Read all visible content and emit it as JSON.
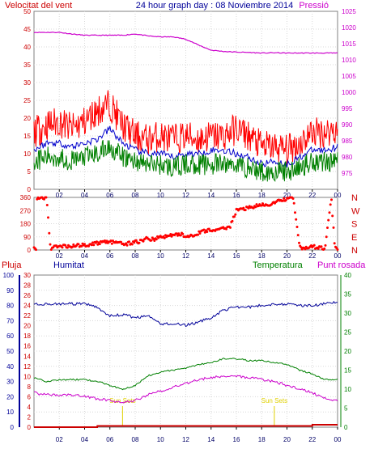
{
  "chart_data": [
    {
      "type": "line",
      "panel": "wind-pressure",
      "title": "24 hour graph day : 08 Noviembre 2014",
      "left_axis_label": "Velocitat del vent",
      "right_axis_label": "Pressió",
      "left_axis": {
        "range": [
          0,
          50
        ],
        "ticks": [
          "0",
          "5",
          "10",
          "15",
          "20",
          "25",
          "30",
          "35",
          "40",
          "45",
          "50"
        ]
      },
      "right_axis": {
        "range": [
          970,
          1025
        ],
        "ticks": [
          "975",
          "980",
          "985",
          "990",
          "995",
          "1000",
          "1005",
          "1010",
          "1015",
          "1020",
          "1025"
        ]
      },
      "x_ticks": [
        "02",
        "04",
        "06",
        "08",
        "10",
        "12",
        "14",
        "16",
        "18",
        "20",
        "22",
        "00"
      ],
      "grid": true,
      "colors": {
        "gust": "#ff0000",
        "average": "#0000cc",
        "speed": "#008000",
        "pressure": "#cc00cc",
        "labels_left": "#cc0000",
        "labels_right": "#cc00cc"
      },
      "series": [
        {
          "name": "",
          "role": "pressure",
          "axis": "right",
          "x": [
            0,
            1,
            2,
            3,
            4,
            5,
            6,
            7,
            8,
            9,
            10,
            11,
            12,
            13,
            14,
            15,
            16,
            17,
            18,
            19,
            20,
            21,
            22,
            23,
            24
          ],
          "values": [
            1018.5,
            1018.5,
            1018.5,
            1018.0,
            1017.6,
            1017.6,
            1017.6,
            1017.6,
            1018.0,
            1017.4,
            1017.1,
            1017.1,
            1016.4,
            1014.6,
            1013.0,
            1012.6,
            1012.4,
            1012.3,
            1012.1,
            1012.2,
            1012.1,
            1012.1,
            1012.1,
            1012.1,
            1012.1
          ]
        },
        {
          "name": "",
          "role": "gust",
          "axis": "left",
          "x": [
            0,
            1,
            2,
            3,
            4,
            5,
            6,
            7,
            8,
            9,
            10,
            11,
            12,
            13,
            14,
            15,
            16,
            17,
            18,
            19,
            20,
            21,
            22,
            23,
            24
          ],
          "values": [
            16,
            18,
            19,
            17,
            19,
            22,
            24,
            18,
            15,
            14,
            15,
            14,
            15,
            14,
            15,
            15,
            17,
            15,
            12,
            12,
            11,
            13,
            16,
            16,
            17
          ]
        },
        {
          "name": "",
          "role": "average",
          "axis": "left",
          "x": [
            0,
            1,
            2,
            3,
            4,
            5,
            6,
            7,
            8,
            9,
            10,
            11,
            12,
            13,
            14,
            15,
            16,
            17,
            18,
            19,
            20,
            21,
            22,
            23,
            24
          ],
          "values": [
            11,
            13,
            13,
            12,
            13,
            14,
            17,
            13,
            11,
            10,
            10,
            9,
            10,
            10,
            11,
            11,
            10,
            9,
            7,
            8,
            7,
            9,
            11,
            11,
            12
          ]
        },
        {
          "name": "",
          "role": "speed",
          "axis": "left",
          "x": [
            0,
            1,
            2,
            3,
            4,
            5,
            6,
            7,
            8,
            9,
            10,
            11,
            12,
            13,
            14,
            15,
            16,
            17,
            18,
            19,
            20,
            21,
            22,
            23,
            24
          ],
          "values": [
            8,
            9,
            9,
            8,
            9,
            10,
            12,
            9,
            8,
            7,
            7,
            6,
            7,
            7,
            7,
            7,
            7,
            6,
            5,
            5,
            5,
            6,
            8,
            8,
            8
          ]
        }
      ]
    },
    {
      "type": "scatter",
      "panel": "wind-direction",
      "left_axis": {
        "range": [
          0,
          360
        ],
        "ticks": [
          "0",
          "90",
          "180",
          "270",
          "360"
        ]
      },
      "right_labels": [
        "N",
        "W",
        "S",
        "E",
        "N"
      ],
      "x_ticks": [
        "02",
        "04",
        "06",
        "08",
        "10",
        "12",
        "14",
        "16",
        "18",
        "20",
        "22",
        "00"
      ],
      "color": "#ff0000",
      "series": [
        {
          "name": "",
          "role": "direction",
          "x": [
            0.2,
            0.5,
            0.8,
            1,
            1.3,
            1.6,
            2,
            2.5,
            3,
            3.5,
            4,
            4.5,
            5,
            5.5,
            6,
            6.5,
            7,
            7.5,
            8,
            8.5,
            9,
            9.5,
            10,
            10.5,
            11,
            11.5,
            12,
            12.5,
            13,
            13.5,
            14,
            14.5,
            15,
            15.5,
            16,
            16.5,
            17,
            17.5,
            18,
            18.5,
            19,
            19.5,
            20,
            20.5,
            21,
            21.5,
            22,
            22.5,
            23,
            23.5,
            23.8
          ],
          "values": [
            360,
            350,
            355,
            360,
            10,
            20,
            25,
            28,
            25,
            30,
            35,
            40,
            45,
            60,
            55,
            50,
            40,
            45,
            55,
            60,
            80,
            70,
            90,
            95,
            100,
            110,
            95,
            100,
            115,
            130,
            140,
            130,
            150,
            160,
            270,
            280,
            290,
            300,
            305,
            310,
            320,
            340,
            350,
            355,
            20,
            10,
            25,
            15,
            15,
            360,
            10
          ]
        }
      ]
    },
    {
      "type": "line",
      "panel": "temperature-humidity",
      "left_axis_labels": {
        "rain": "Pluja",
        "humidity": "Humitat"
      },
      "right_axis_labels": {
        "temperature": "Temperatura",
        "dew_point": "Punt rosada"
      },
      "rain_axis": {
        "range": [
          0,
          100
        ],
        "ticks": [
          "0",
          "10",
          "20",
          "30",
          "40",
          "50",
          "60",
          "70",
          "80",
          "90",
          "100"
        ]
      },
      "humidity_axis": {
        "range": [
          0,
          30
        ],
        "ticks": [
          "0",
          "2",
          "4",
          "6",
          "8",
          "10",
          "12",
          "14",
          "16",
          "18",
          "20",
          "22",
          "24",
          "26",
          "28",
          "30"
        ]
      },
      "temperature_axis": {
        "range": [
          0,
          40
        ],
        "ticks": [
          "0",
          "5",
          "10",
          "15",
          "20",
          "25",
          "30",
          "35",
          "40"
        ]
      },
      "x_ticks": [
        "02",
        "04",
        "06",
        "08",
        "10",
        "12",
        "14",
        "16",
        "18",
        "20",
        "22",
        "00"
      ],
      "annotations": [
        {
          "text": "Sun Sets",
          "x": 7.0
        },
        {
          "text": "Sun Sets",
          "x": 19.0
        }
      ],
      "colors": {
        "humidity": "#000099",
        "temperature": "#008000",
        "dew_point": "#cc00cc",
        "rain": "#cc0000",
        "annotation": "#e0d000"
      },
      "series": [
        {
          "name": "",
          "role": "humidity",
          "axis": "rain",
          "x": [
            0,
            1,
            2,
            3,
            4,
            5,
            6,
            7,
            8,
            9,
            10,
            11,
            12,
            13,
            14,
            15,
            16,
            17,
            18,
            19,
            20,
            21,
            22,
            23,
            24
          ],
          "values": [
            81,
            81,
            81,
            81,
            81,
            79,
            73,
            74,
            72,
            73,
            68,
            68,
            67,
            69,
            72,
            77,
            79,
            79,
            80,
            81,
            81,
            80,
            80,
            81,
            82
          ]
        },
        {
          "name": "",
          "role": "temperature",
          "axis": "temperature",
          "x": [
            0,
            1,
            2,
            3,
            4,
            5,
            6,
            7,
            8,
            9,
            10,
            11,
            12,
            13,
            14,
            15,
            16,
            17,
            18,
            19,
            20,
            21,
            22,
            23,
            24
          ],
          "values": [
            13.0,
            12.0,
            12.5,
            12.5,
            12.5,
            12.0,
            11.0,
            10.0,
            11.0,
            13.5,
            14.5,
            15.0,
            15.5,
            16.5,
            17.0,
            18.0,
            18.0,
            17.5,
            17.5,
            17.0,
            16.5,
            15.0,
            14.0,
            12.5,
            12.5
          ]
        },
        {
          "name": "",
          "role": "dew_point",
          "axis": "temperature",
          "x": [
            0,
            1,
            2,
            3,
            4,
            5,
            6,
            7,
            8,
            9,
            10,
            11,
            12,
            13,
            14,
            15,
            16,
            17,
            18,
            19,
            20,
            21,
            22,
            23,
            24
          ],
          "values": [
            9.0,
            8.5,
            8.5,
            8.5,
            8.0,
            7.5,
            7.0,
            6.5,
            7.0,
            8.5,
            9.5,
            10.5,
            11.5,
            12.5,
            13.0,
            13.5,
            13.5,
            13.0,
            12.5,
            12.0,
            11.0,
            10.0,
            9.0,
            7.5,
            7.0
          ]
        },
        {
          "name": "",
          "role": "rain",
          "axis": "rain",
          "x": [
            0,
            5,
            5.01,
            22,
            22.01,
            24
          ],
          "values": [
            0,
            0,
            0.8,
            0.8,
            1.6,
            1.6
          ]
        }
      ]
    }
  ]
}
